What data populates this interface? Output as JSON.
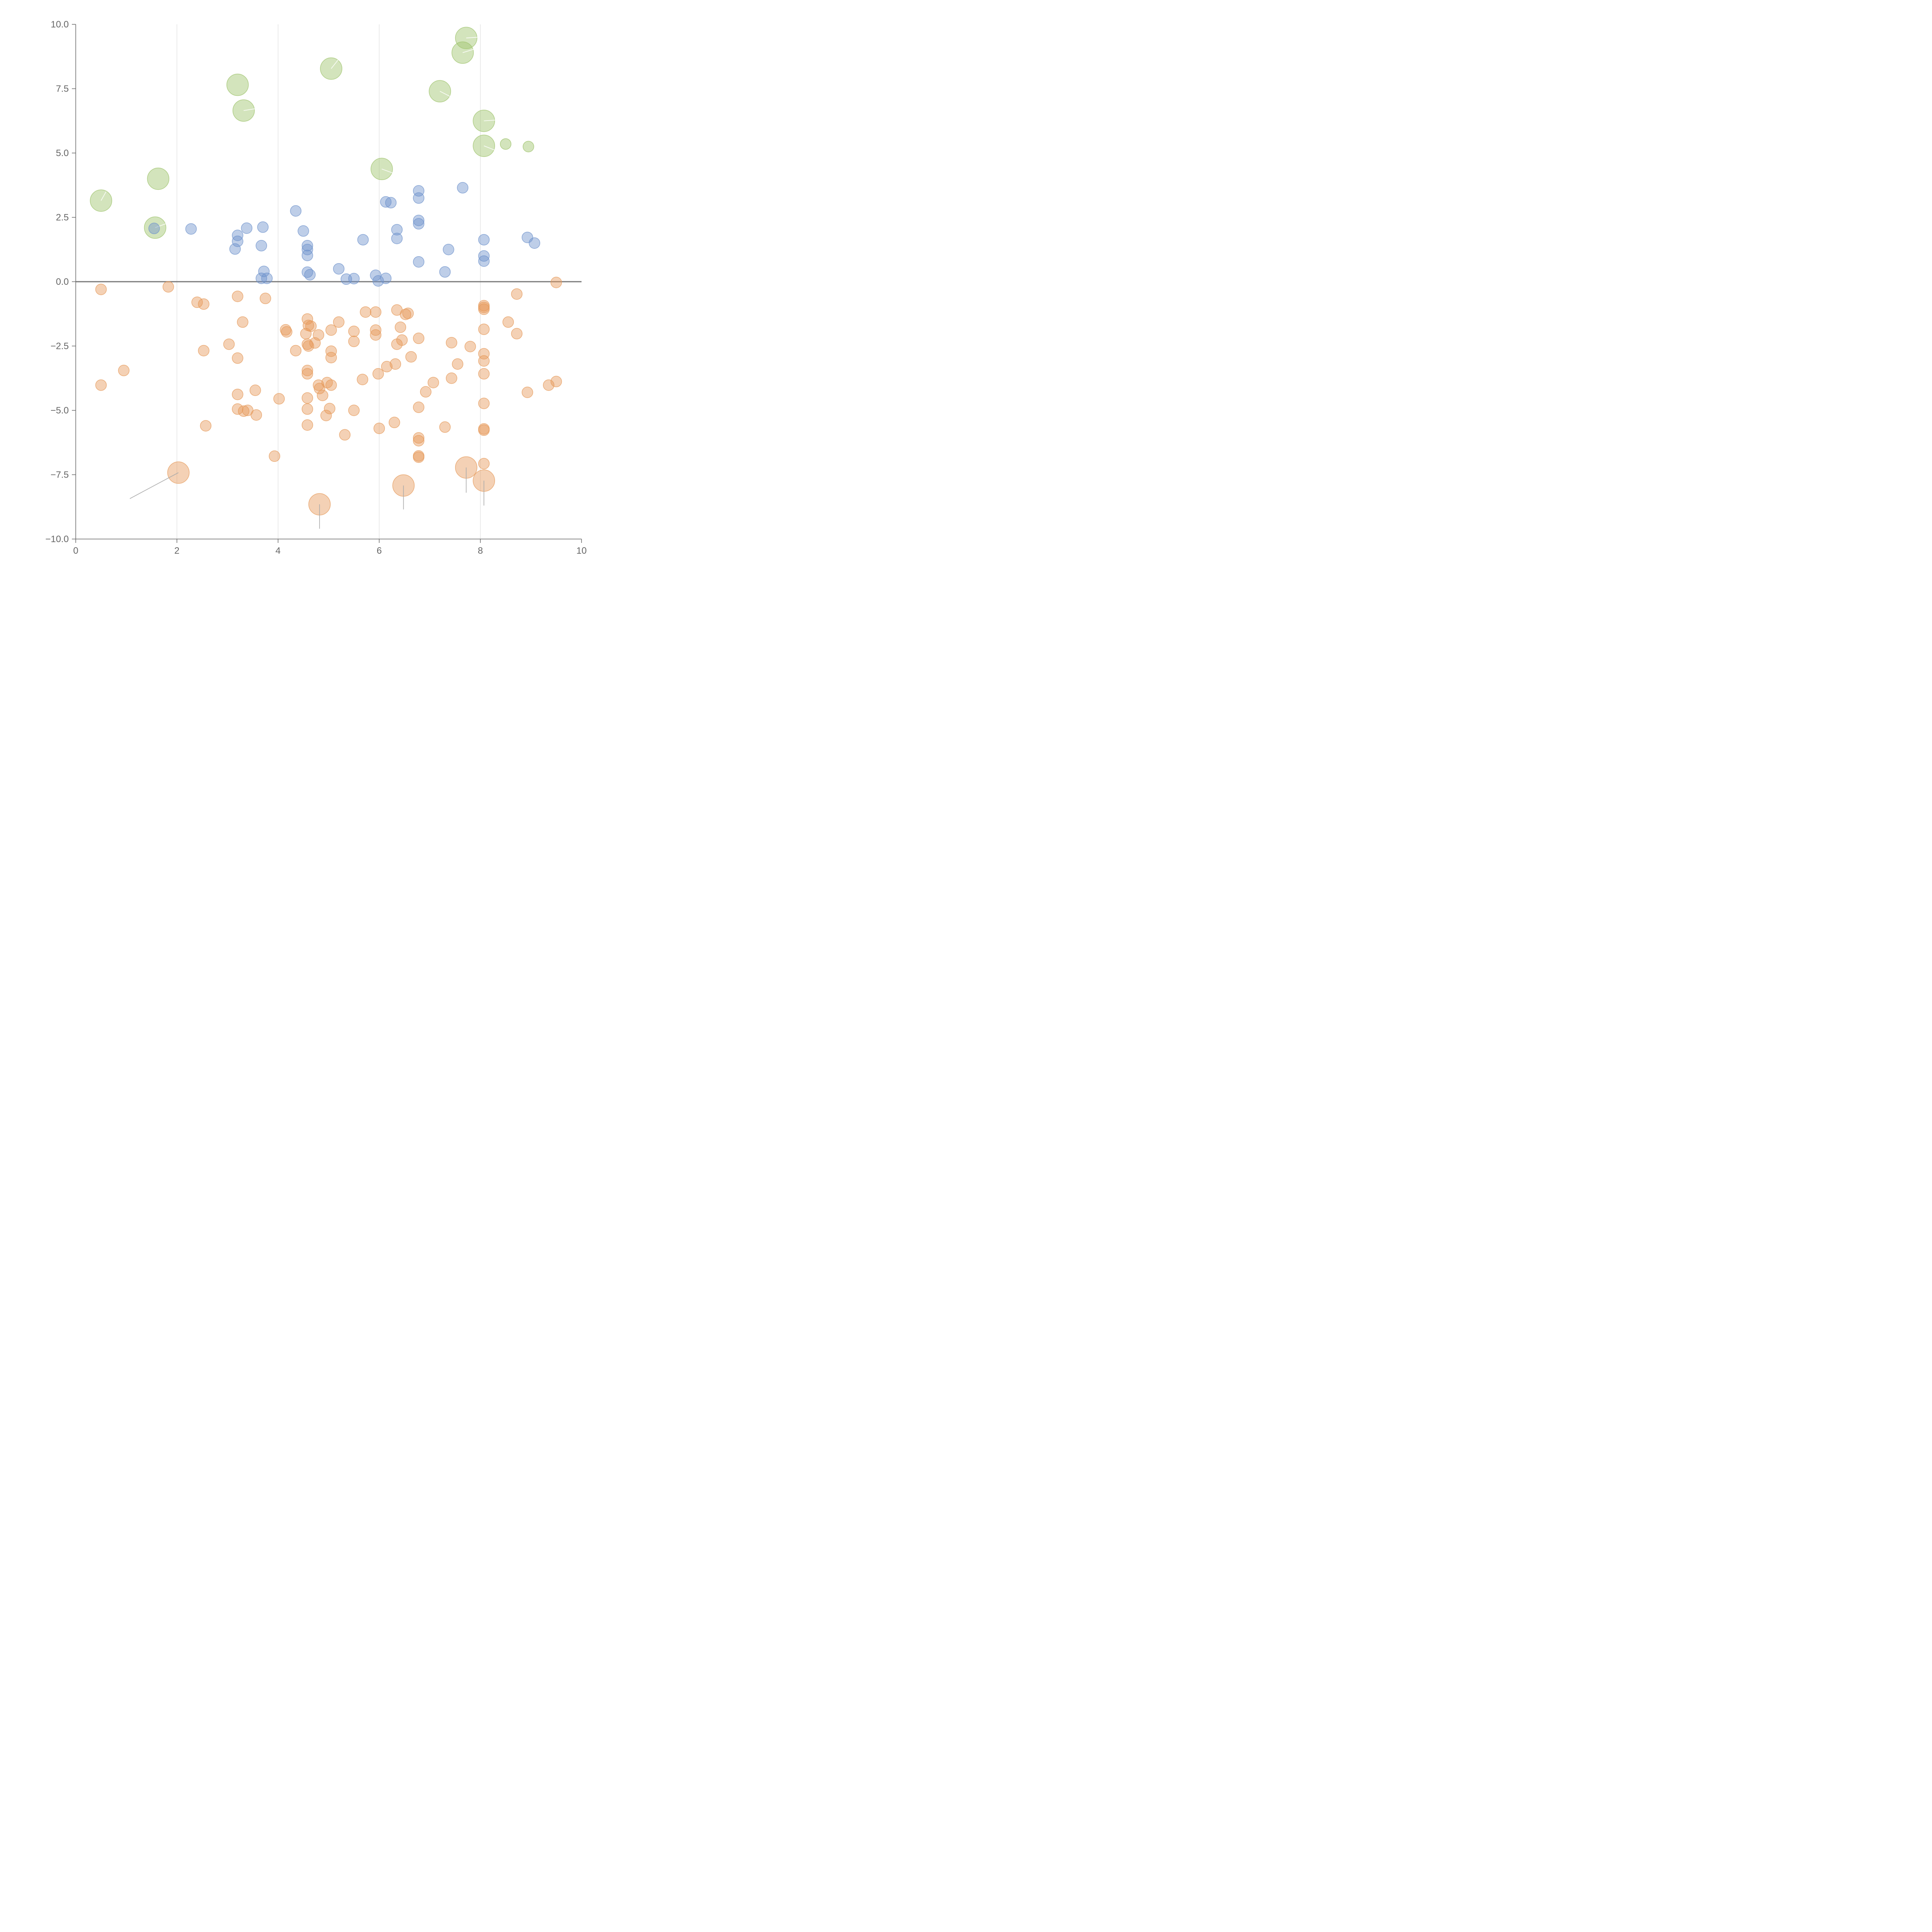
{
  "chart_data": {
    "type": "scatter",
    "title": "",
    "xlabel": "",
    "ylabel": "",
    "xlim": [
      0,
      10
    ],
    "ylim": [
      -10,
      10
    ],
    "x_ticks": [
      0,
      2,
      4,
      6,
      8,
      10
    ],
    "x_tick_labels": [
      "0",
      "2",
      "4",
      "6",
      "8",
      "10"
    ],
    "y_ticks": [
      -10,
      -7.5,
      -5,
      -2.5,
      0,
      2.5,
      5,
      7.5,
      10
    ],
    "y_tick_labels": [
      "−10.0",
      "−7.5",
      "−5.0",
      "−2.5",
      "0.0",
      "2.5",
      "5.0",
      "7.5",
      "10.0"
    ],
    "vertical_gridlines": [
      2,
      4,
      6,
      8
    ],
    "baseline_y": 0,
    "colors": {
      "green": "#9dc36b",
      "blue": "#6f93cc",
      "orange": "#e6995a",
      "baseline": "#777777",
      "axis": "#666666",
      "grid": "#dddddd",
      "leader_light": "#ffffff",
      "leader_dark": "#aaaaaa"
    },
    "series": [
      {
        "name": "green-large",
        "color": "#9dc36b",
        "points": [
          {
            "x": 0.5,
            "y": 3.15,
            "r": 28,
            "lx": 0.6,
            "ly": 3.5
          },
          {
            "x": 1.63,
            "y": 4.0,
            "r": 28
          },
          {
            "x": 1.57,
            "y": 2.1,
            "r": 28,
            "lx": 1.85,
            "ly": 2.3
          },
          {
            "x": 3.2,
            "y": 7.65,
            "r": 28
          },
          {
            "x": 3.32,
            "y": 6.65,
            "r": 28,
            "lx": 3.7,
            "ly": 6.77
          },
          {
            "x": 5.05,
            "y": 8.28,
            "r": 28,
            "lx": 5.2,
            "ly": 8.65
          },
          {
            "x": 6.05,
            "y": 4.38,
            "r": 28,
            "lx": 6.3,
            "ly": 4.2
          },
          {
            "x": 7.2,
            "y": 7.4,
            "r": 28,
            "lx": 7.45,
            "ly": 7.15
          },
          {
            "x": 7.72,
            "y": 9.47,
            "r": 28,
            "lx": 7.95,
            "ly": 9.5
          },
          {
            "x": 7.65,
            "y": 8.9,
            "r": 28,
            "lx": 7.9,
            "ly": 9.05
          },
          {
            "x": 8.07,
            "y": 6.25,
            "r": 28,
            "lx": 8.3,
            "ly": 6.28
          },
          {
            "x": 8.07,
            "y": 5.28,
            "r": 28,
            "lx": 8.3,
            "ly": 5.1
          },
          {
            "x": 8.5,
            "y": 5.35,
            "r": 14
          },
          {
            "x": 8.95,
            "y": 5.25,
            "r": 14
          }
        ]
      },
      {
        "name": "blue",
        "color": "#6f93cc",
        "points": [
          {
            "x": 1.55,
            "y": 2.07
          },
          {
            "x": 2.28,
            "y": 2.05
          },
          {
            "x": 3.15,
            "y": 1.27
          },
          {
            "x": 3.2,
            "y": 1.8
          },
          {
            "x": 3.2,
            "y": 1.57
          },
          {
            "x": 3.38,
            "y": 2.08
          },
          {
            "x": 3.67,
            "y": 1.4
          },
          {
            "x": 3.7,
            "y": 2.12
          },
          {
            "x": 3.72,
            "y": 0.4
          },
          {
            "x": 3.67,
            "y": 0.13
          },
          {
            "x": 3.78,
            "y": 0.13
          },
          {
            "x": 4.35,
            "y": 2.75
          },
          {
            "x": 4.5,
            "y": 1.97
          },
          {
            "x": 4.58,
            "y": 1.4
          },
          {
            "x": 4.58,
            "y": 1.25
          },
          {
            "x": 4.58,
            "y": 1.02
          },
          {
            "x": 4.58,
            "y": 0.37
          },
          {
            "x": 4.63,
            "y": 0.27
          },
          {
            "x": 5.2,
            "y": 0.5
          },
          {
            "x": 5.35,
            "y": 0.1
          },
          {
            "x": 5.5,
            "y": 0.12
          },
          {
            "x": 5.68,
            "y": 1.63
          },
          {
            "x": 5.93,
            "y": 0.25
          },
          {
            "x": 5.98,
            "y": 0.03
          },
          {
            "x": 6.13,
            "y": 0.13
          },
          {
            "x": 6.13,
            "y": 3.1
          },
          {
            "x": 6.23,
            "y": 3.07
          },
          {
            "x": 6.35,
            "y": 2.02
          },
          {
            "x": 6.35,
            "y": 1.68
          },
          {
            "x": 6.78,
            "y": 3.53
          },
          {
            "x": 6.78,
            "y": 3.25
          },
          {
            "x": 6.78,
            "y": 2.38
          },
          {
            "x": 6.78,
            "y": 2.25
          },
          {
            "x": 6.78,
            "y": 0.77
          },
          {
            "x": 7.3,
            "y": 0.38
          },
          {
            "x": 7.37,
            "y": 1.25
          },
          {
            "x": 7.65,
            "y": 3.65
          },
          {
            "x": 8.07,
            "y": 1.63
          },
          {
            "x": 8.07,
            "y": 1.0
          },
          {
            "x": 8.07,
            "y": 0.8
          },
          {
            "x": 8.93,
            "y": 1.72
          },
          {
            "x": 9.07,
            "y": 1.5
          }
        ]
      },
      {
        "name": "orange",
        "color": "#e6995a",
        "points": [
          {
            "x": 0.5,
            "y": -0.3
          },
          {
            "x": 0.5,
            "y": -4.02
          },
          {
            "x": 0.95,
            "y": -3.45
          },
          {
            "x": 1.83,
            "y": -0.2
          },
          {
            "x": 2.4,
            "y": -0.8
          },
          {
            "x": 2.53,
            "y": -0.87
          },
          {
            "x": 2.53,
            "y": -2.68
          },
          {
            "x": 2.57,
            "y": -5.6
          },
          {
            "x": 3.03,
            "y": -2.43
          },
          {
            "x": 3.2,
            "y": -0.57
          },
          {
            "x": 3.3,
            "y": -1.57
          },
          {
            "x": 3.2,
            "y": -2.97
          },
          {
            "x": 3.2,
            "y": -4.38
          },
          {
            "x": 3.2,
            "y": -4.95
          },
          {
            "x": 3.32,
            "y": -5.03
          },
          {
            "x": 3.4,
            "y": -5.0
          },
          {
            "x": 3.55,
            "y": -4.22
          },
          {
            "x": 3.57,
            "y": -5.18
          },
          {
            "x": 3.75,
            "y": -0.65
          },
          {
            "x": 3.93,
            "y": -6.78
          },
          {
            "x": 4.02,
            "y": -4.55
          },
          {
            "x": 4.15,
            "y": -1.87
          },
          {
            "x": 4.17,
            "y": -1.95
          },
          {
            "x": 4.35,
            "y": -2.68
          },
          {
            "x": 4.55,
            "y": -2.02
          },
          {
            "x": 4.58,
            "y": -1.45
          },
          {
            "x": 4.6,
            "y": -1.7
          },
          {
            "x": 4.65,
            "y": -1.73
          },
          {
            "x": 4.58,
            "y": -2.43
          },
          {
            "x": 4.6,
            "y": -2.5
          },
          {
            "x": 4.73,
            "y": -2.38
          },
          {
            "x": 4.58,
            "y": -3.45
          },
          {
            "x": 4.58,
            "y": -3.58
          },
          {
            "x": 4.8,
            "y": -2.07
          },
          {
            "x": 4.58,
            "y": -4.52
          },
          {
            "x": 4.58,
            "y": -4.95
          },
          {
            "x": 4.58,
            "y": -5.57
          },
          {
            "x": 4.8,
            "y": -4.02
          },
          {
            "x": 4.82,
            "y": -4.15
          },
          {
            "x": 4.88,
            "y": -4.42
          },
          {
            "x": 4.97,
            "y": -3.92
          },
          {
            "x": 5.05,
            "y": -4.02
          },
          {
            "x": 5.02,
            "y": -4.93
          },
          {
            "x": 4.95,
            "y": -5.2
          },
          {
            "x": 5.05,
            "y": -1.88
          },
          {
            "x": 5.05,
            "y": -2.7
          },
          {
            "x": 5.05,
            "y": -2.95
          },
          {
            "x": 5.2,
            "y": -1.57
          },
          {
            "x": 5.32,
            "y": -5.95
          },
          {
            "x": 5.5,
            "y": -1.93
          },
          {
            "x": 5.5,
            "y": -2.32
          },
          {
            "x": 5.5,
            "y": -5.0
          },
          {
            "x": 5.73,
            "y": -1.18
          },
          {
            "x": 5.67,
            "y": -3.8
          },
          {
            "x": 5.93,
            "y": -1.18
          },
          {
            "x": 5.93,
            "y": -1.88
          },
          {
            "x": 5.93,
            "y": -2.07
          },
          {
            "x": 5.98,
            "y": -3.58
          },
          {
            "x": 6.0,
            "y": -5.7
          },
          {
            "x": 6.15,
            "y": -3.3
          },
          {
            "x": 6.32,
            "y": -3.2
          },
          {
            "x": 6.3,
            "y": -5.47
          },
          {
            "x": 6.35,
            "y": -1.1
          },
          {
            "x": 6.35,
            "y": -2.43
          },
          {
            "x": 6.42,
            "y": -1.77
          },
          {
            "x": 6.45,
            "y": -2.27
          },
          {
            "x": 6.52,
            "y": -1.27
          },
          {
            "x": 6.57,
            "y": -1.23
          },
          {
            "x": 6.63,
            "y": -2.92
          },
          {
            "x": 6.78,
            "y": -2.2
          },
          {
            "x": 6.78,
            "y": -4.88
          },
          {
            "x": 6.78,
            "y": -6.07
          },
          {
            "x": 6.78,
            "y": -6.18
          },
          {
            "x": 6.78,
            "y": -6.77
          },
          {
            "x": 6.78,
            "y": -6.82
          },
          {
            "x": 6.92,
            "y": -4.28
          },
          {
            "x": 7.07,
            "y": -3.92
          },
          {
            "x": 7.3,
            "y": -5.65
          },
          {
            "x": 7.43,
            "y": -2.37
          },
          {
            "x": 7.43,
            "y": -3.75
          },
          {
            "x": 7.55,
            "y": -3.2
          },
          {
            "x": 7.8,
            "y": -2.52
          },
          {
            "x": 8.07,
            "y": -0.93
          },
          {
            "x": 8.07,
            "y": -1.0
          },
          {
            "x": 8.07,
            "y": -1.07
          },
          {
            "x": 8.07,
            "y": -1.85
          },
          {
            "x": 8.07,
            "y": -2.8
          },
          {
            "x": 8.07,
            "y": -3.08
          },
          {
            "x": 8.07,
            "y": -3.58
          },
          {
            "x": 8.07,
            "y": -4.73
          },
          {
            "x": 8.07,
            "y": -5.72
          },
          {
            "x": 8.07,
            "y": -5.77
          },
          {
            "x": 8.07,
            "y": -7.07
          },
          {
            "x": 8.55,
            "y": -1.57
          },
          {
            "x": 8.72,
            "y": -0.48
          },
          {
            "x": 8.72,
            "y": -2.02
          },
          {
            "x": 8.93,
            "y": -4.3
          },
          {
            "x": 9.35,
            "y": -4.02
          },
          {
            "x": 9.5,
            "y": -0.03
          },
          {
            "x": 9.5,
            "y": -3.88
          }
        ]
      },
      {
        "name": "orange-large",
        "color": "#e6995a",
        "points": [
          {
            "x": 2.03,
            "y": -7.42,
            "r": 28,
            "lx": 1.07,
            "ly": -8.43
          },
          {
            "x": 4.82,
            "y": -8.65,
            "r": 28,
            "lx": 4.82,
            "ly": -9.6
          },
          {
            "x": 6.48,
            "y": -7.92,
            "r": 28,
            "lx": 6.48,
            "ly": -8.85
          },
          {
            "x": 7.72,
            "y": -7.22,
            "r": 28,
            "lx": 7.72,
            "ly": -8.2
          },
          {
            "x": 8.07,
            "y": -7.73,
            "r": 28,
            "lx": 8.07,
            "ly": -8.7
          }
        ]
      }
    ]
  }
}
